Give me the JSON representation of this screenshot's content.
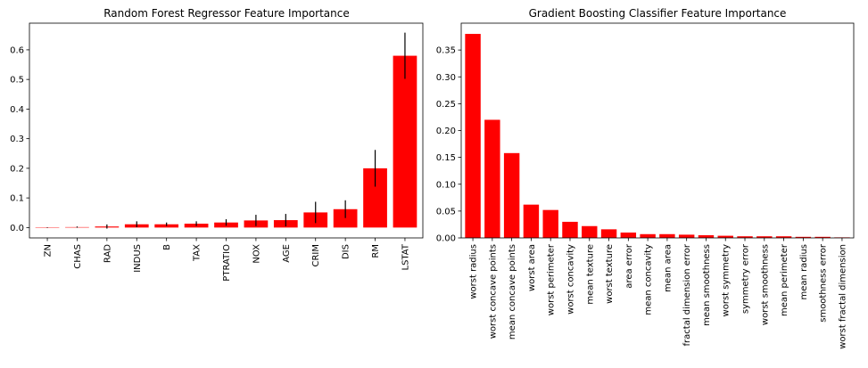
{
  "colors": {
    "bar": "#ff0000",
    "error_bar": "#000000",
    "axis": "#000000",
    "background": "#ffffff"
  },
  "chart_data": [
    {
      "type": "bar",
      "title": "Random Forest Regressor Feature Importance",
      "xlabel": "",
      "ylabel": "",
      "categories": [
        "ZN",
        "CHAS",
        "RAD",
        "INDUS",
        "B",
        "TAX",
        "PTRATIO",
        "NOX",
        "AGE",
        "CRIM",
        "DIS",
        "RM",
        "LSTAT"
      ],
      "values": [
        0.0002,
        0.0015,
        0.0035,
        0.011,
        0.011,
        0.013,
        0.017,
        0.024,
        0.025,
        0.051,
        0.062,
        0.2,
        0.58
      ],
      "errors": [
        0.001,
        0.002,
        0.007,
        0.01,
        0.006,
        0.008,
        0.011,
        0.019,
        0.021,
        0.036,
        0.03,
        0.062,
        0.078
      ],
      "ylim": [
        -0.035,
        0.69
      ],
      "yticks": [
        0.0,
        0.1,
        0.2,
        0.3,
        0.4,
        0.5,
        0.6
      ],
      "ytick_labels": [
        "0.0",
        "0.1",
        "0.2",
        "0.3",
        "0.4",
        "0.5",
        "0.6"
      ],
      "grid": false,
      "legend": "none"
    },
    {
      "type": "bar",
      "title": "Gradient Boosting Classifier Feature Importance",
      "xlabel": "",
      "ylabel": "",
      "categories": [
        "worst radius",
        "worst concave points",
        "mean concave points",
        "worst area",
        "worst perimeter",
        "worst concavity",
        "mean texture",
        "worst texture",
        "area error",
        "mean concavity",
        "mean area",
        "fractal dimension error",
        "mean smoothness",
        "worst symmetry",
        "symmetry error",
        "worst smoothness",
        "mean perimeter",
        "mean radius",
        "smoothness error",
        "worst fractal dimension"
      ],
      "values": [
        0.38,
        0.22,
        0.158,
        0.062,
        0.052,
        0.03,
        0.022,
        0.016,
        0.01,
        0.007,
        0.007,
        0.006,
        0.005,
        0.004,
        0.003,
        0.003,
        0.003,
        0.002,
        0.002,
        0.001
      ],
      "ylim": [
        0,
        0.4
      ],
      "yticks": [
        0.0,
        0.05,
        0.1,
        0.15,
        0.2,
        0.25,
        0.3,
        0.35
      ],
      "ytick_labels": [
        "0.00",
        "0.05",
        "0.10",
        "0.15",
        "0.20",
        "0.25",
        "0.30",
        "0.35"
      ],
      "grid": false,
      "legend": "none"
    }
  ]
}
